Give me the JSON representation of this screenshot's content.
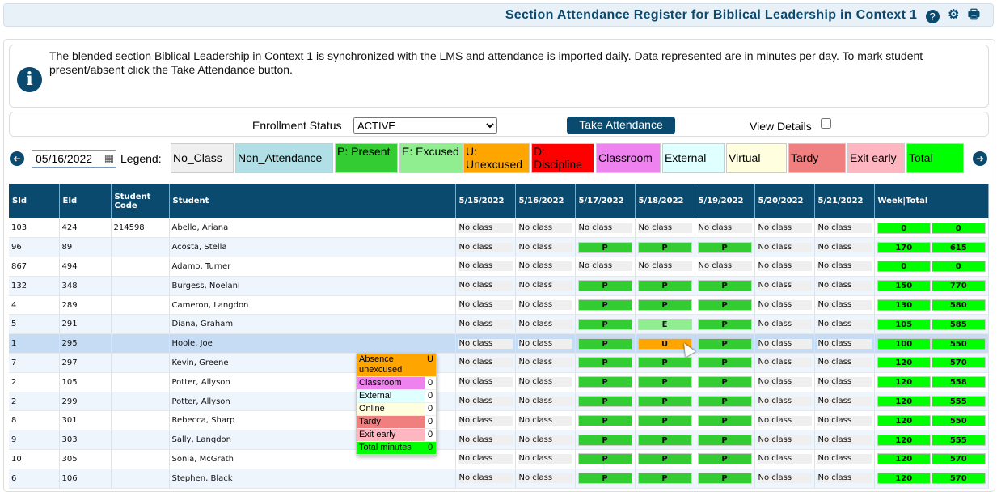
{
  "header": {
    "title": "Section Attendance Register for Biblical Leadership in Context 1",
    "icons": [
      "help-icon",
      "gear-icon",
      "print-icon"
    ]
  },
  "info": {
    "text": "The blended section Biblical Leadership in Context 1 is synchronized with the LMS and attendance is imported daily. Data represented are in minutes per day. To mark student present/absent click the Take Attendance button."
  },
  "filters": {
    "enrollment_label": "Enrollment Status",
    "enrollment_value": "ACTIVE",
    "take_attendance": "Take Attendance",
    "view_details": "View Details",
    "view_details_checked": false
  },
  "date": {
    "value": "05/16/2022"
  },
  "legend": {
    "label": "Legend:",
    "items": [
      {
        "label": "No_Class",
        "color": "#efefef"
      },
      {
        "label": "Non_Attendance",
        "color": "#b0dfe5"
      },
      {
        "label": "P: Present",
        "color": "#33cc33"
      },
      {
        "label": "E: Excused",
        "color": "#90ee90"
      },
      {
        "label": "U: Unexcused",
        "color": "#ffa500"
      },
      {
        "label": "D: Discipline",
        "color": "#ff0000"
      },
      {
        "label": "Classroom",
        "color": "#ee82ee"
      },
      {
        "label": "External",
        "color": "#e0ffff"
      },
      {
        "label": "Virtual",
        "color": "#ffffe0"
      },
      {
        "label": "Tardy",
        "color": "#f08080"
      },
      {
        "label": "Exit early",
        "color": "#ffb6c1"
      },
      {
        "label": "Total",
        "color": "#00ff00"
      }
    ]
  },
  "table": {
    "headers": [
      "SId",
      "EId",
      "Student Code",
      "Student",
      "5/15/2022",
      "5/16/2022",
      "5/17/2022",
      "5/18/2022",
      "5/19/2022",
      "5/20/2022",
      "5/21/2022",
      "Week|Total"
    ],
    "rows": [
      {
        "sid": "103",
        "eid": "424",
        "code": "214598",
        "name": "Abello, Ariana",
        "days": [
          "No class",
          "No class",
          "No class",
          "No class",
          "No class",
          "No class",
          "No class"
        ],
        "week": "0",
        "total": "0"
      },
      {
        "sid": "96",
        "eid": "89",
        "code": "",
        "name": "Acosta, Stella",
        "days": [
          "No class",
          "No class",
          "P",
          "P",
          "P",
          "No class",
          "No class"
        ],
        "week": "170",
        "total": "615"
      },
      {
        "sid": "867",
        "eid": "494",
        "code": "",
        "name": "Adamo, Turner",
        "days": [
          "No class",
          "No class",
          "No class",
          "No class",
          "No class",
          "No class",
          "No class"
        ],
        "week": "0",
        "total": "0"
      },
      {
        "sid": "132",
        "eid": "348",
        "code": "",
        "name": "Burgess, Noelani",
        "days": [
          "No class",
          "No class",
          "P",
          "P",
          "P",
          "No class",
          "No class"
        ],
        "week": "150",
        "total": "770"
      },
      {
        "sid": "4",
        "eid": "289",
        "code": "",
        "name": "Cameron, Langdon",
        "days": [
          "No class",
          "No class",
          "P",
          "P",
          "P",
          "No class",
          "No class"
        ],
        "week": "130",
        "total": "580"
      },
      {
        "sid": "5",
        "eid": "291",
        "code": "",
        "name": "Diana, Graham",
        "days": [
          "No class",
          "No class",
          "P",
          "E",
          "P",
          "No class",
          "No class"
        ],
        "week": "105",
        "total": "585"
      },
      {
        "sid": "1",
        "eid": "295",
        "code": "",
        "name": "Hoole, Joe",
        "days": [
          "No class",
          "No class",
          "P",
          "U",
          "P",
          "No class",
          "No class"
        ],
        "week": "100",
        "total": "550",
        "selected": true
      },
      {
        "sid": "7",
        "eid": "297",
        "code": "",
        "name": "Kevin, Greene",
        "days": [
          "No class",
          "No class",
          "P",
          "P",
          "P",
          "No class",
          "No class"
        ],
        "week": "120",
        "total": "570"
      },
      {
        "sid": "2",
        "eid": "105",
        "code": "",
        "name": "Potter, Allyson",
        "days": [
          "No class",
          "No class",
          "P",
          "P",
          "P",
          "No class",
          "No class"
        ],
        "week": "120",
        "total": "558"
      },
      {
        "sid": "2",
        "eid": "299",
        "code": "",
        "name": "Potter, Allyson",
        "days": [
          "No class",
          "No class",
          "P",
          "P",
          "P",
          "No class",
          "No class"
        ],
        "week": "120",
        "total": "555"
      },
      {
        "sid": "8",
        "eid": "301",
        "code": "",
        "name": "Rebecca, Sharp",
        "days": [
          "No class",
          "No class",
          "P",
          "P",
          "P",
          "No class",
          "No class"
        ],
        "week": "120",
        "total": "550"
      },
      {
        "sid": "9",
        "eid": "303",
        "code": "",
        "name": "Sally, Langdon",
        "days": [
          "No class",
          "No class",
          "P",
          "P",
          "P",
          "No class",
          "No class"
        ],
        "week": "120",
        "total": "555"
      },
      {
        "sid": "10",
        "eid": "305",
        "code": "",
        "name": "Sonia, McGrath",
        "days": [
          "No class",
          "No class",
          "P",
          "P",
          "P",
          "No class",
          "No class"
        ],
        "week": "120",
        "total": "570"
      },
      {
        "sid": "6",
        "eid": "106",
        "code": "",
        "name": "Stephen, Black",
        "days": [
          "No class",
          "No class",
          "P",
          "P",
          "P",
          "No class",
          "No class"
        ],
        "week": "120",
        "total": "570"
      }
    ]
  },
  "tooltip": {
    "rows": [
      {
        "label": "Absence unexcused",
        "value": "U",
        "color": "#ffa500"
      },
      {
        "label": "Classroom",
        "value": "0",
        "color": "#ee82ee"
      },
      {
        "label": "External",
        "value": "0",
        "color": "#e0ffff"
      },
      {
        "label": "Online",
        "value": "0",
        "color": "#ffffe0"
      },
      {
        "label": "Tardy",
        "value": "0",
        "color": "#f08080"
      },
      {
        "label": "Exit early",
        "value": "0",
        "color": "#ffb6c1"
      },
      {
        "label": "Total minutes",
        "value": "0",
        "color": "#00ff00"
      }
    ]
  }
}
